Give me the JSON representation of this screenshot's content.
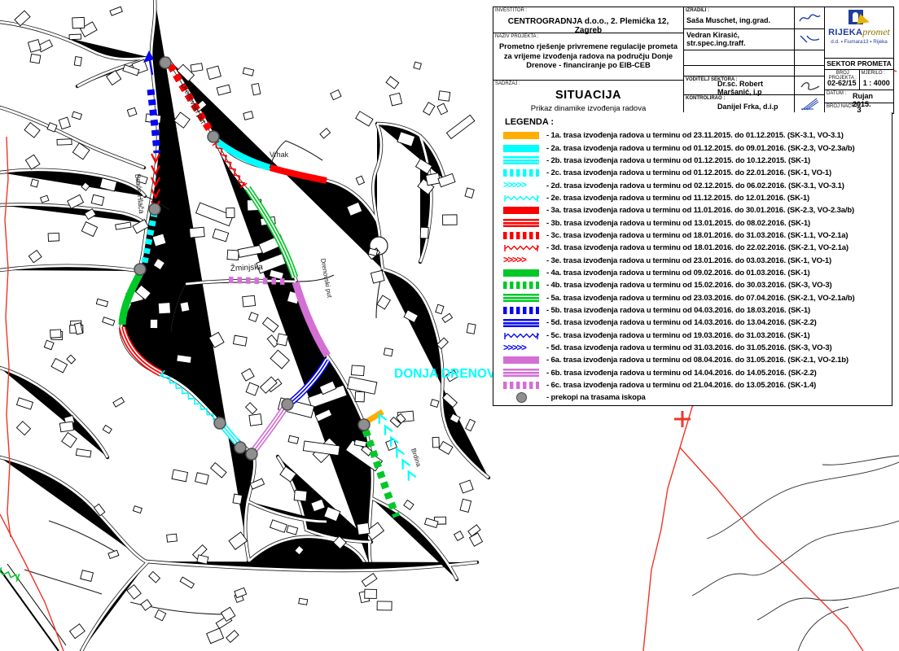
{
  "title_block": {
    "investor_label": "INVESTITOR :",
    "investor": "CENTROGRADNJA d.o.o., 2. Plemićka 12, Zagreb",
    "project_label": "NAZIV PROJEKTA :",
    "project": "Prometno rješenje privremene regulacije prometa za vrijeme izvođenja radova na području Donje Drenove - financiranje po EIB-CEB",
    "content_label": "SADRŽAJ :",
    "content_title": "SITUACIJA",
    "content_subtitle": "Prikaz dinamike izvođenja radova",
    "made_by_label": "IZRADILI :",
    "made_by_1": "Saša Muschet, ing.grad.",
    "made_by_2": "Vedran Kirasić, str.spec.ing.traff.",
    "sector_head_label": "VODITELJ SEKTORA :",
    "sector_head": "Dr.sc. Robert Maršanić, i.p",
    "controlled_label": "KONTROLIRAO :",
    "controlled": "Danijel Frka, d.i.p",
    "company": {
      "name_1": "RIJEKA",
      "name_2": "promet",
      "address": "d.d. ▪ Fiumara13 ▪ Rijeka",
      "sector": "SEKTOR PROMETA"
    },
    "project_no_label": "BROJ PROJEKTA :",
    "project_no": "02-62/15",
    "scale_label": "MJERILO :",
    "scale": "1 : 4000",
    "date_label": "DATUM :",
    "date": "Rujan 2015.",
    "drawing_no_label": "BROJ NACRTA :",
    "drawing_no": "3"
  },
  "legend": {
    "title": "LEGENDA :",
    "items": [
      {
        "id": "1a",
        "style": "solid",
        "color": "#ffae00",
        "label": "- 1a. trasa izvođenja radova u terminu od 23.11.2015. do 01.12.2015. (SK-3.1, VO-3.1)"
      },
      {
        "id": "2a",
        "style": "solid",
        "color": "#00ffff",
        "label": "- 2a. trasa izvođenja radova u terminu od 01.12.2015. do 09.01.2016. (SK-2.3, VO-2.3a/b)"
      },
      {
        "id": "2b",
        "style": "lines",
        "color": "#00ffff",
        "label": "- 2b. trasa izvođenja radova u terminu od 01.12.2015. do 10.12.2015. (SK-1)"
      },
      {
        "id": "2c",
        "style": "dashed",
        "color": "#00ffff",
        "label": "- 2c. trasa izvođenja radova u terminu od 01.12.2015. do 22.01.2016. (SK-1, VO-1)"
      },
      {
        "id": "2d",
        "style": "chevron",
        "color": "#00ffff",
        "label": "- 2d. trasa izvođenja radova u terminu od 02.12.2015. do 06.02.2016. (SK-3.1, VO-3.1)"
      },
      {
        "id": "2e",
        "style": "wavy",
        "color": "#00ffff",
        "label": "- 2e. trasa izvođenja radova u terminu od 11.12.2015. do 12.01.2016. (SK-1)"
      },
      {
        "id": "3a",
        "style": "solid",
        "color": "#fb0000",
        "label": "- 3a. trasa izvođenja radova u terminu od 11.01.2016. do 30.01.2016. (SK-2.3, VO-2.3a/b)"
      },
      {
        "id": "3b",
        "style": "lines",
        "color": "#fb0000",
        "label": "- 3b. trasa izvođenja radova u terminu od 13.01.2015. do 08.02.2016. (SK-1)"
      },
      {
        "id": "3c",
        "style": "dashed",
        "color": "#fb0000",
        "label": "- 3c. trasa izvođenja radova u terminu od 18.01.2016. do 31.03.2016. (SK-1.1, VO-2.1a)"
      },
      {
        "id": "3d",
        "style": "wavy",
        "color": "#fb0000",
        "label": "- 3d. trasa izvođenja radova u terminu od 18.01.2016. do 22.02.2016. (SK-2.1, VO-2.1a)"
      },
      {
        "id": "3e",
        "style": "chevron",
        "color": "#fb0000",
        "label": "- 3e. trasa izvođenja radova u terminu od 23.01.2016. do 03.03.2016. (SK-1, VO-1)"
      },
      {
        "id": "4a",
        "style": "solid",
        "color": "#00c828",
        "label": "- 4a. trasa izvođenja radova u terminu od 09.02.2016. do 01.03.2016. (SK-1)"
      },
      {
        "id": "4b",
        "style": "dashed",
        "color": "#00c828",
        "label": "- 4b. trasa izvođenja radova u terminu od 15.02.2016. do 30.03.2016. (SK-3, VO-3)"
      },
      {
        "id": "5a",
        "style": "lines",
        "color": "#00c828",
        "label": "- 5a. trasa izvođenja radova u terminu od 23.03.2016. do 07.04.2016. (SK-2.1, VO-2.1a/b)"
      },
      {
        "id": "5b",
        "style": "dashed",
        "color": "#0808f0",
        "label": "- 5b. trasa izvođenja radova u terminu od 04.03.2016. do 18.03.2016. (SK-1)"
      },
      {
        "id": "5d",
        "style": "lines",
        "color": "#0808f0",
        "label": "- 5d. trasa izvođenja radova u terminu od 14.03.2016. do 13.04.2016. (SK-2.2)"
      },
      {
        "id": "5c",
        "style": "wavy",
        "color": "#0808f0",
        "label": "- 5c. trasa izvođenja radova u terminu od 19.03.2016. do 31.03.2016. (SK-1)"
      },
      {
        "id": "5d2",
        "style": "chevron",
        "color": "#0808f0",
        "label": "- 5d. trasa izvođenja radova u terminu od 31.03.2016. do 31.05.2016. (SK-3, VO-3)"
      },
      {
        "id": "6a",
        "style": "solid",
        "color": "#d46fd4",
        "label": "- 6a. trasa izvođenja radova u terminu od 08.04.2016. do 31.05.2016. (SK-2.1, VO-2.1b)"
      },
      {
        "id": "6b",
        "style": "lines",
        "color": "#d46fd4",
        "label": "- 6b. trasa izvođenja radova u terminu od 14.04.2016. do 14.05.2016. (SK-2.2)"
      },
      {
        "id": "6c",
        "style": "dashed",
        "color": "#d46fd4",
        "label": "- 6c. trasa izvođenja radova u terminu od 21.04.2016. do 13.05.2016. (SK-1.4)"
      },
      {
        "id": "prekopi",
        "style": "circle",
        "color": "#8f8f8f",
        "label": "- prekopi na trasama iskopa"
      }
    ]
  },
  "map": {
    "colors": {
      "orange": "#ffae00",
      "cyan": "#00ffff",
      "red": "#fb0000",
      "green": "#00c828",
      "blue": "#0808f0",
      "violet": "#d46fd4",
      "dig_gray": "#8f8f8f",
      "boundary_red": "#f03528",
      "road": "#1a1a1a"
    },
    "labels": [
      {
        "text": "Drenovski put"
      },
      {
        "text": "Vrhak"
      },
      {
        "text": "Braće Hlača"
      },
      {
        "text": "Žminjska"
      },
      {
        "text": "DONJA DRENOVA"
      },
      {
        "text": "Brdina"
      },
      {
        "text": "Drenovski put"
      }
    ]
  }
}
